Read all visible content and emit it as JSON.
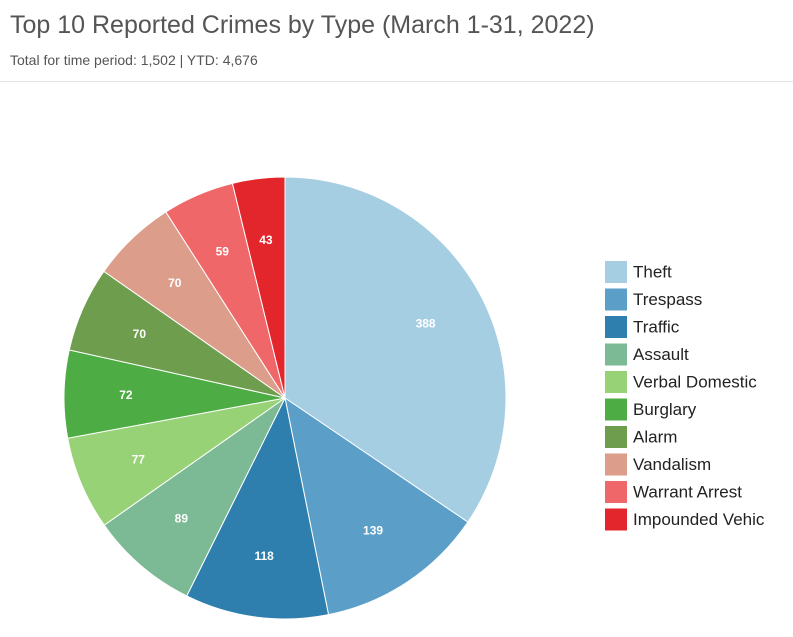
{
  "header": {
    "title": "Top 10 Reported Crimes by Type (March 1-31, 2022)",
    "subtitle": "Total for time period: 1,502 | YTD: 4,676"
  },
  "chart_data": {
    "type": "pie",
    "title": "Top 10 Reported Crimes by Type (March 1-31, 2022)",
    "subtitle": "Total for time period: 1,502 | YTD: 4,676",
    "legend_position": "right",
    "slices": [
      {
        "label": "Theft",
        "value": 388,
        "color": "#a6cee3"
      },
      {
        "label": "Trespass",
        "value": 139,
        "color": "#5b9fc9"
      },
      {
        "label": "Traffic",
        "value": 118,
        "color": "#2e7fae"
      },
      {
        "label": "Assault",
        "value": 89,
        "color": "#7cb995"
      },
      {
        "label": "Verbal Domestic",
        "value": 77,
        "color": "#98d277"
      },
      {
        "label": "Burglary",
        "value": 72,
        "color": "#4eac45"
      },
      {
        "label": "Alarm",
        "value": 70,
        "color": "#6e9e4d"
      },
      {
        "label": "Vandalism",
        "value": 70,
        "color": "#dc9e8a"
      },
      {
        "label": "Warrant Arrest",
        "value": 59,
        "color": "#f0676a"
      },
      {
        "label": "Impounded Vehic",
        "value": 43,
        "color": "#e3262b"
      }
    ]
  }
}
